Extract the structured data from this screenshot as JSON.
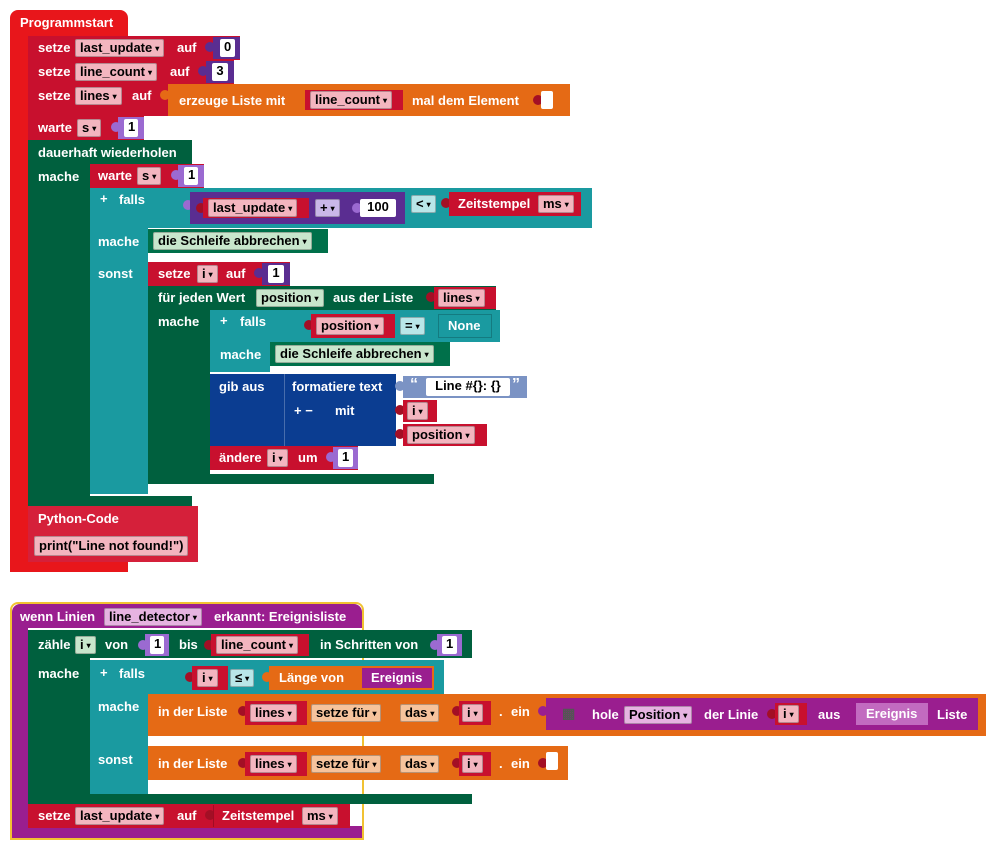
{
  "colors": {
    "event": "#e8161b",
    "var": "#c8102e",
    "loop": "#00603e",
    "logic": "#1a9aa0",
    "math": "#5a2d91",
    "text": "#0b3d91",
    "list": "#e56a15",
    "hardware": "#9a1e8f",
    "line_event_border": "#f1c232"
  },
  "program": {
    "hat": "Programmstart",
    "set_last_update": {
      "setze": "setze",
      "var": "last_update",
      "auf": "auf",
      "value": "0"
    },
    "set_line_count": {
      "setze": "setze",
      "var": "line_count",
      "auf": "auf",
      "value": "3"
    },
    "set_lines": {
      "setze": "setze",
      "var": "lines",
      "auf": "auf",
      "create": "erzeuge Liste mit",
      "var2": "line_count",
      "suffix": "mal dem Element"
    },
    "wait1": {
      "label": "warte",
      "unit": "s",
      "value": "1"
    },
    "forever": "dauerhaft wiederholen",
    "mache": "mache",
    "wait2": {
      "label": "warte",
      "unit": "s",
      "value": "1"
    },
    "if1": {
      "plus": "+",
      "label": "falls",
      "var": "last_update",
      "op": "+",
      "value": "100",
      "cmp": "<",
      "ts": "Zeitstempel",
      "ts_unit": "ms"
    },
    "mache2": "mache",
    "break1": "die Schleife abbrechen",
    "sonst": "sonst",
    "set_i": {
      "setze": "setze",
      "var": "i",
      "auf": "auf",
      "value": "1"
    },
    "foreach": {
      "label": "für jeden Wert",
      "var": "position",
      "from": "aus der Liste",
      "list": "lines"
    },
    "mache3": "mache",
    "if2": {
      "plus": "+",
      "label": "falls",
      "var": "position",
      "cmp": "=",
      "value": "None"
    },
    "mache4": "mache",
    "break2": "die Schleife abbrechen",
    "print": {
      "label": "gib aus",
      "fmt": "formatiere text",
      "open_quote": "“",
      "text": "Line #{}: {}",
      "close_quote": "”",
      "plusminus": "+ −",
      "mit": "mit",
      "arg1": "i",
      "arg2": "position"
    },
    "change": {
      "label": "ändere",
      "var": "i",
      "um": "um",
      "value": "1"
    },
    "python": {
      "label": "Python-Code",
      "code": "print(\"Line not found!\")"
    }
  },
  "event": {
    "prefix": "wenn Linien",
    "detector": "line_detector",
    "suffix": "erkannt: Ereignisliste",
    "count": {
      "label": "zähle",
      "var": "i",
      "von": "von",
      "from": "1",
      "bis": "bis",
      "to": "line_count",
      "step_label": "in Schritten von",
      "step": "1"
    },
    "mache": "mache",
    "if": {
      "plus": "+",
      "label": "falls",
      "var": "i",
      "cmp": "≤",
      "len": "Länge von",
      "ev": "Ereignis"
    },
    "mache2": "mache",
    "then": {
      "in": "in der Liste",
      "list": "lines",
      "set": "setze für",
      "idx": "das",
      "var": "i",
      "dot": ".",
      "ein": "ein",
      "get": "hole",
      "field": "Position",
      "of": "der Linie",
      "var2": "i",
      "from": "aus",
      "ev": "Ereignis",
      "liste": "Liste"
    },
    "sonst": "sonst",
    "else": {
      "in": "in der Liste",
      "list": "lines",
      "set": "setze für",
      "idx": "das",
      "var": "i",
      "dot": ".",
      "ein": "ein"
    },
    "set_lu": {
      "setze": "setze",
      "var": "last_update",
      "auf": "auf",
      "ts": "Zeitstempel",
      "unit": "ms"
    }
  }
}
